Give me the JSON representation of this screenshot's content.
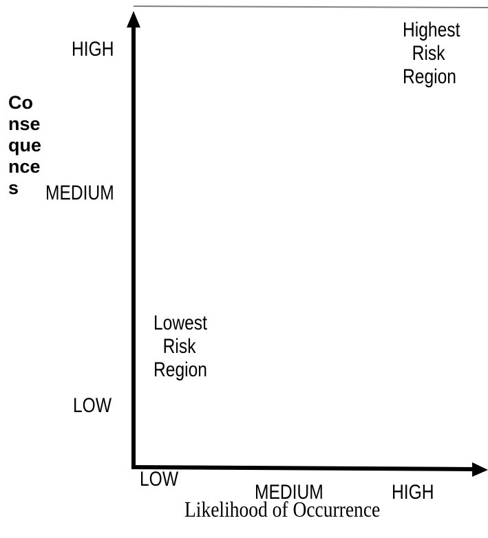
{
  "diagram": {
    "y_axis": {
      "title_lines": [
        "Co",
        "nse",
        "que",
        "nce",
        "s"
      ],
      "levels": {
        "high": "HIGH",
        "medium": "MEDIUM",
        "low": "LOW"
      }
    },
    "x_axis": {
      "title": "Likelihood of Occurrence",
      "levels": {
        "low": "LOW",
        "medium": "MEDIUM",
        "high": "HIGH"
      }
    },
    "regions": {
      "highest": [
        "Highest",
        "  Risk",
        "Region"
      ],
      "lowest": [
        "Lowest",
        "  Risk",
        "Region"
      ]
    },
    "colors": {
      "axis": "#000000",
      "border": "#7f7f7f",
      "text": "#000000"
    }
  }
}
